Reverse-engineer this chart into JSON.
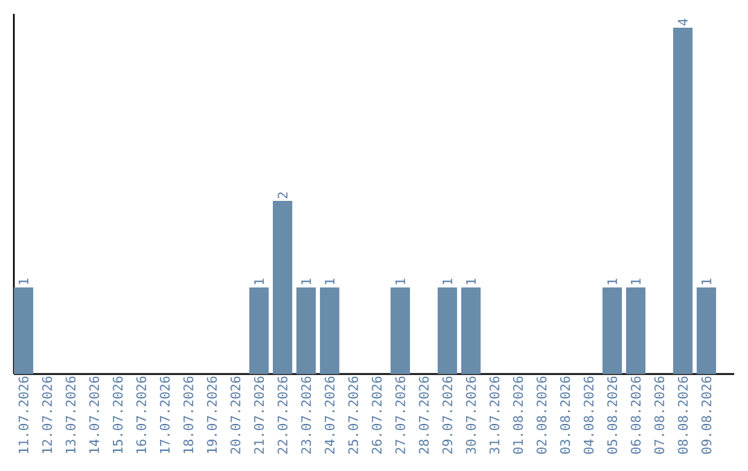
{
  "chart_data": {
    "type": "bar",
    "categories": [
      "11.07.2026",
      "12.07.2026",
      "13.07.2026",
      "14.07.2026",
      "15.07.2026",
      "16.07.2026",
      "17.07.2026",
      "18.07.2026",
      "19.07.2026",
      "20.07.2026",
      "21.07.2026",
      "22.07.2026",
      "23.07.2026",
      "24.07.2026",
      "25.07.2026",
      "26.07.2026",
      "27.07.2026",
      "28.07.2026",
      "29.07.2026",
      "30.07.2026",
      "31.07.2026",
      "01.08.2026",
      "02.08.2026",
      "03.08.2026",
      "04.08.2026",
      "05.08.2026",
      "06.08.2026",
      "07.08.2026",
      "08.08.2026",
      "09.08.2026"
    ],
    "values": [
      1,
      0,
      0,
      0,
      0,
      0,
      0,
      0,
      0,
      0,
      1,
      2,
      1,
      1,
      0,
      0,
      1,
      0,
      1,
      1,
      0,
      0,
      0,
      0,
      0,
      1,
      1,
      0,
      4,
      1
    ],
    "value_labels": [
      "1",
      null,
      null,
      null,
      null,
      null,
      null,
      null,
      null,
      null,
      "1",
      "2",
      "1",
      "1",
      null,
      null,
      "1",
      null,
      "1",
      "1",
      null,
      null,
      null,
      null,
      null,
      "1",
      "1",
      null,
      "4",
      "1"
    ],
    "color": "#6a8cab",
    "ylim": [
      0,
      4.16
    ],
    "tick_labels": "x",
    "grid": false
  }
}
